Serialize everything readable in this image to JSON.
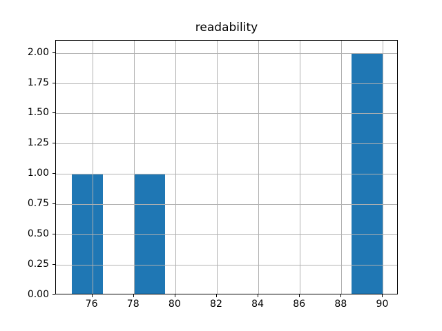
{
  "chart_data": {
    "type": "histogram",
    "title": "readability",
    "xlabel": "",
    "ylabel": "",
    "xlim": [
      74.25,
      90.75
    ],
    "ylim": [
      0,
      2.1
    ],
    "x_ticks": [
      76,
      78,
      80,
      82,
      84,
      86,
      88,
      90
    ],
    "x_tick_labels": [
      "76",
      "78",
      "80",
      "82",
      "84",
      "86",
      "88",
      "90"
    ],
    "y_ticks": [
      0,
      0.25,
      0.5,
      0.75,
      1.0,
      1.25,
      1.5,
      1.75,
      2.0
    ],
    "y_tick_labels": [
      "0.00",
      "0.25",
      "0.50",
      "0.75",
      "1.00",
      "1.25",
      "1.50",
      "1.75",
      "2.00"
    ],
    "grid": true,
    "grid_position": "above-bars",
    "legend": "none",
    "bins": [
      {
        "start": 75.0,
        "end": 76.5,
        "count": 1
      },
      {
        "start": 78.0,
        "end": 79.5,
        "count": 1
      },
      {
        "start": 88.5,
        "end": 90.0,
        "count": 2
      }
    ],
    "bar_color": "#1f77b4",
    "grid_color": "#b0b0b0",
    "spine_color": "#000000",
    "background_color": "#ffffff"
  }
}
